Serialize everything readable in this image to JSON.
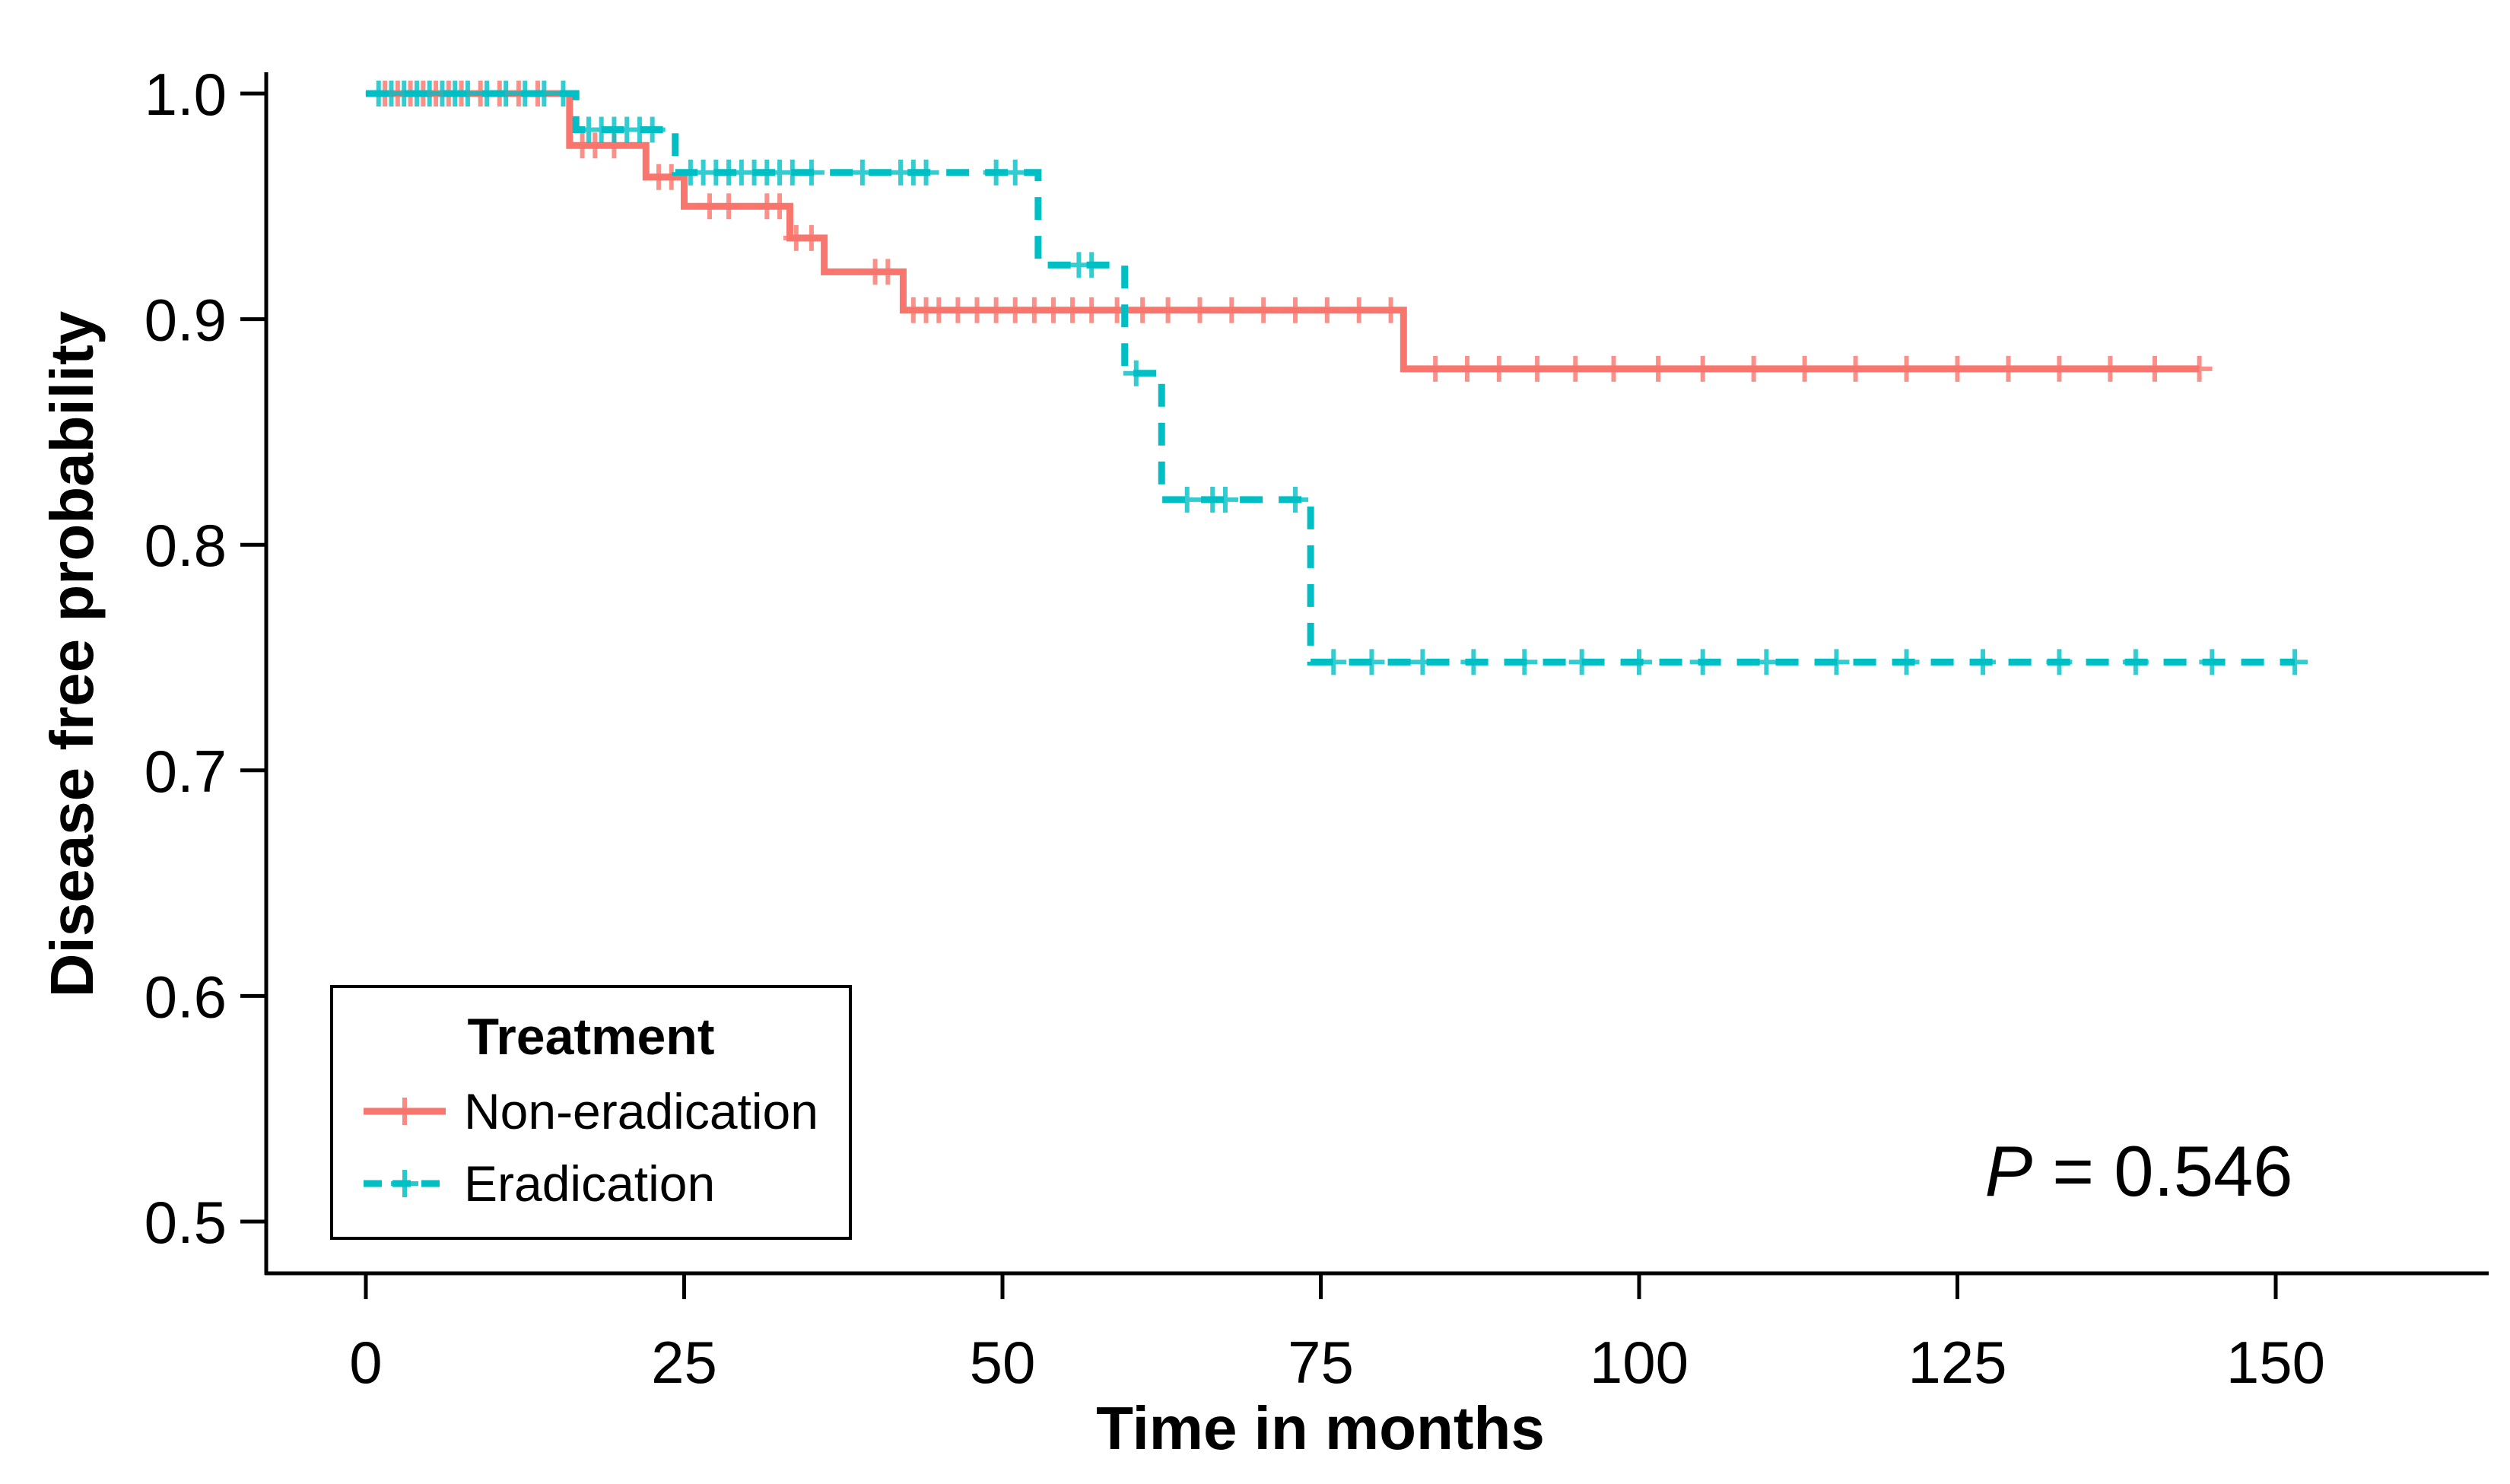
{
  "legend": {
    "title": "Treatment",
    "items": [
      {
        "label": "Non-eradication"
      },
      {
        "label": "Eradication"
      }
    ]
  },
  "chart_data": {
    "type": "line",
    "subtype": "kaplan_meier_step",
    "title": "",
    "xlabel": "Time in months",
    "ylabel": "Disease free probability",
    "xlim": [
      -8,
      167
    ],
    "ylim": [
      0.477,
      1.009
    ],
    "grid": false,
    "legend_position": "inside-bottom-left",
    "x_ticks": {
      "values": [
        0,
        25,
        50,
        75,
        100,
        125,
        150
      ],
      "labels": [
        "0",
        "25",
        "50",
        "75",
        "100",
        "125",
        "150"
      ]
    },
    "y_ticks": {
      "values": [
        1.0,
        0.9,
        0.8,
        0.7,
        0.6,
        0.5
      ],
      "labels": [
        "1.0",
        "0.9",
        "0.8",
        "0.7",
        "0.6",
        "0.5"
      ]
    },
    "annotation": {
      "p_italic": "P",
      "p_rest": " = 0.546"
    },
    "series": [
      {
        "name": "Non-eradication",
        "color": "#F8766D",
        "line_style": "solid",
        "steps": [
          [
            0,
            1.0
          ],
          [
            16,
            0.977
          ],
          [
            22,
            0.963
          ],
          [
            25,
            0.95
          ],
          [
            33.3,
            0.936
          ],
          [
            36,
            0.921
          ],
          [
            42.2,
            0.904
          ],
          [
            81.5,
            0.878
          ]
        ],
        "end_time": 144,
        "censors": [
          [
            1.5,
            1.0
          ],
          [
            2.5,
            1.0
          ],
          [
            3.5,
            1.0
          ],
          [
            4.5,
            1.0
          ],
          [
            5.5,
            1.0
          ],
          [
            6.5,
            1.0
          ],
          [
            7.5,
            1.0
          ],
          [
            9,
            1.0
          ],
          [
            10.5,
            1.0
          ],
          [
            12,
            1.0
          ],
          [
            13.5,
            1.0
          ],
          [
            17,
            0.977
          ],
          [
            18,
            0.977
          ],
          [
            19.5,
            0.977
          ],
          [
            23,
            0.963
          ],
          [
            24,
            0.963
          ],
          [
            27,
            0.95
          ],
          [
            28.5,
            0.95
          ],
          [
            31.5,
            0.95
          ],
          [
            32.5,
            0.95
          ],
          [
            33.8,
            0.936
          ],
          [
            35,
            0.936
          ],
          [
            40,
            0.921
          ],
          [
            41,
            0.921
          ],
          [
            43,
            0.904
          ],
          [
            44,
            0.904
          ],
          [
            45,
            0.904
          ],
          [
            46.5,
            0.904
          ],
          [
            48,
            0.904
          ],
          [
            49.5,
            0.904
          ],
          [
            51,
            0.904
          ],
          [
            52.5,
            0.904
          ],
          [
            54,
            0.904
          ],
          [
            55.5,
            0.904
          ],
          [
            57,
            0.904
          ],
          [
            59,
            0.904
          ],
          [
            61,
            0.904
          ],
          [
            63,
            0.904
          ],
          [
            65.5,
            0.904
          ],
          [
            68,
            0.904
          ],
          [
            70.5,
            0.904
          ],
          [
            73,
            0.904
          ],
          [
            75.5,
            0.904
          ],
          [
            78,
            0.904
          ],
          [
            80.5,
            0.904
          ],
          [
            84,
            0.878
          ],
          [
            86.5,
            0.878
          ],
          [
            89,
            0.878
          ],
          [
            92,
            0.878
          ],
          [
            95,
            0.878
          ],
          [
            98,
            0.878
          ],
          [
            101.5,
            0.878
          ],
          [
            105,
            0.878
          ],
          [
            109,
            0.878
          ],
          [
            113,
            0.878
          ],
          [
            117,
            0.878
          ],
          [
            121,
            0.878
          ],
          [
            125,
            0.878
          ],
          [
            129,
            0.878
          ],
          [
            133,
            0.878
          ],
          [
            137,
            0.878
          ],
          [
            140.5,
            0.878
          ],
          [
            144,
            0.878
          ]
        ]
      },
      {
        "name": "Eradication",
        "color": "#00BFC4",
        "line_style": "dashed",
        "steps": [
          [
            0,
            1.0
          ],
          [
            16.5,
            0.984
          ],
          [
            24.3,
            0.965
          ],
          [
            52.8,
            0.924
          ],
          [
            59.6,
            0.876
          ],
          [
            62.5,
            0.82
          ],
          [
            74.2,
            0.748
          ]
        ],
        "end_time": 151.5,
        "censors": [
          [
            1,
            1.0
          ],
          [
            2,
            1.0
          ],
          [
            3,
            1.0
          ],
          [
            4,
            1.0
          ],
          [
            5,
            1.0
          ],
          [
            6,
            1.0
          ],
          [
            7,
            1.0
          ],
          [
            8,
            1.0
          ],
          [
            9.5,
            1.0
          ],
          [
            11,
            1.0
          ],
          [
            12.5,
            1.0
          ],
          [
            14,
            1.0
          ],
          [
            15.5,
            1.0
          ],
          [
            17.5,
            0.984
          ],
          [
            18.5,
            0.984
          ],
          [
            19.5,
            0.984
          ],
          [
            20.5,
            0.984
          ],
          [
            21.5,
            0.984
          ],
          [
            22.5,
            0.984
          ],
          [
            25.5,
            0.965
          ],
          [
            26.5,
            0.965
          ],
          [
            27.5,
            0.965
          ],
          [
            28.5,
            0.965
          ],
          [
            29.5,
            0.965
          ],
          [
            30.5,
            0.965
          ],
          [
            31.5,
            0.965
          ],
          [
            32.5,
            0.965
          ],
          [
            33.5,
            0.965
          ],
          [
            35,
            0.965
          ],
          [
            39,
            0.965
          ],
          [
            42,
            0.965
          ],
          [
            43,
            0.965
          ],
          [
            44,
            0.965
          ],
          [
            49.5,
            0.965
          ],
          [
            51,
            0.965
          ],
          [
            56,
            0.924
          ],
          [
            57,
            0.924
          ],
          [
            60.5,
            0.876
          ],
          [
            64.5,
            0.82
          ],
          [
            66.5,
            0.82
          ],
          [
            67.5,
            0.82
          ],
          [
            73,
            0.82
          ],
          [
            76,
            0.748
          ],
          [
            79,
            0.748
          ],
          [
            83,
            0.748
          ],
          [
            87,
            0.748
          ],
          [
            91,
            0.748
          ],
          [
            95.5,
            0.748
          ],
          [
            100,
            0.748
          ],
          [
            105,
            0.748
          ],
          [
            110,
            0.748
          ],
          [
            115.5,
            0.748
          ],
          [
            121,
            0.748
          ],
          [
            127,
            0.748
          ],
          [
            133,
            0.748
          ],
          [
            139,
            0.748
          ],
          [
            145,
            0.748
          ],
          [
            151.5,
            0.748
          ]
        ]
      }
    ]
  }
}
